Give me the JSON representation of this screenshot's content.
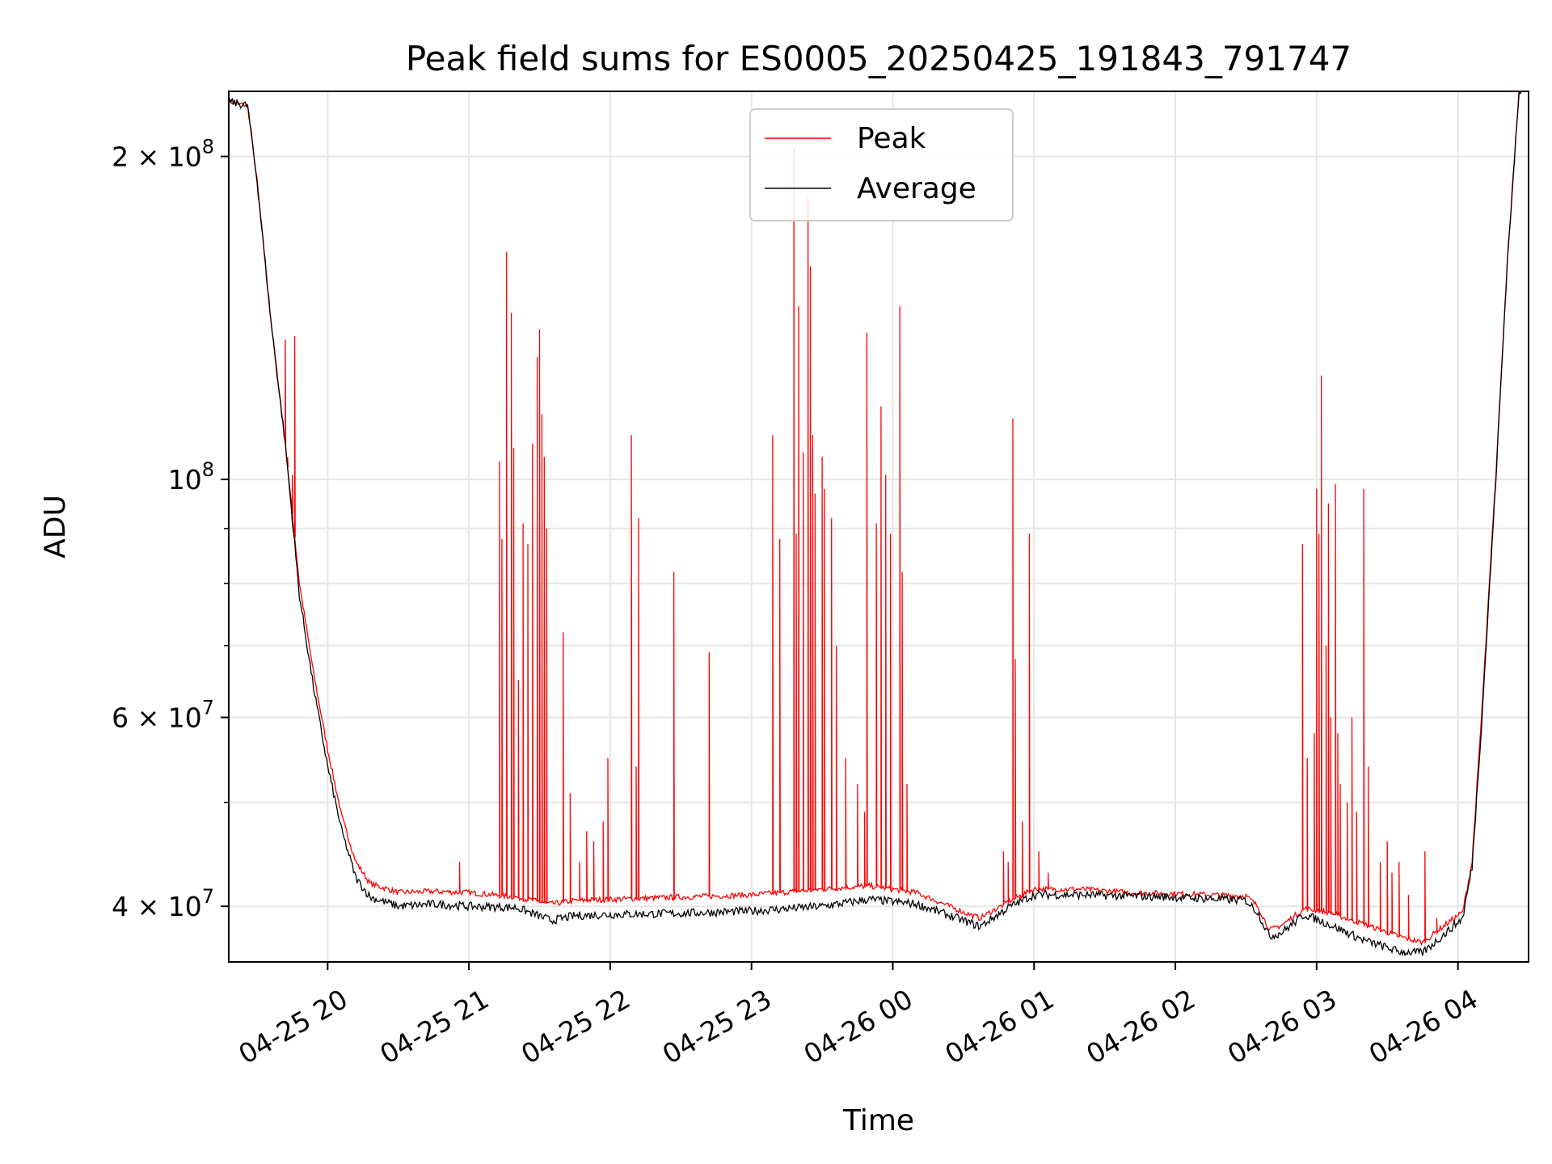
{
  "chart_data": {
    "type": "line",
    "title": "Peak field sums for ES0005_20250425_191843_791747",
    "xlabel": "Time",
    "ylabel": "ADU",
    "yscale": "log",
    "xlim": [
      "2025-04-25 19:18",
      "2025-04-26 04:30"
    ],
    "ylim": [
      35500000,
      230000000
    ],
    "grid": true,
    "legend_position": "top-center",
    "x_ticks": [
      {
        "t": "2025-04-25 20:00",
        "label": "04-25 20"
      },
      {
        "t": "2025-04-25 21:00",
        "label": "04-25 21"
      },
      {
        "t": "2025-04-25 22:00",
        "label": "04-25 22"
      },
      {
        "t": "2025-04-25 23:00",
        "label": "04-25 23"
      },
      {
        "t": "2025-04-26 00:00",
        "label": "04-26 00"
      },
      {
        "t": "2025-04-26 01:00",
        "label": "04-26 01"
      },
      {
        "t": "2025-04-26 02:00",
        "label": "04-26 02"
      },
      {
        "t": "2025-04-26 03:00",
        "label": "04-26 03"
      },
      {
        "t": "2025-04-26 04:00",
        "label": "04-26 04"
      }
    ],
    "y_ticks": [
      {
        "value": 40000000,
        "base": "4",
        "exp": "7"
      },
      {
        "value": 60000000,
        "base": "6",
        "exp": "7"
      },
      {
        "value": 100000000,
        "base": "",
        "exp": "8"
      },
      {
        "value": 200000000,
        "base": "2",
        "exp": "8"
      }
    ],
    "y_minor_ticks": [
      50000000,
      70000000,
      80000000,
      90000000
    ],
    "series": [
      {
        "name": "Peak",
        "color": "#ff0000",
        "baseline": [
          [
            "2025-04-25 19:18",
            225000000
          ],
          [
            "2025-04-25 19:22",
            224000000
          ],
          [
            "2025-04-25 19:26",
            223000000
          ],
          [
            "2025-04-25 19:30",
            190000000
          ],
          [
            "2025-04-25 19:36",
            140000000
          ],
          [
            "2025-04-25 19:42",
            108000000
          ],
          [
            "2025-04-25 19:48",
            80000000
          ],
          [
            "2025-04-25 19:54",
            66000000
          ],
          [
            "2025-04-25 20:00",
            56000000
          ],
          [
            "2025-04-25 20:06",
            48500000
          ],
          [
            "2025-04-25 20:12",
            44000000
          ],
          [
            "2025-04-25 20:18",
            42000000
          ],
          [
            "2025-04-25 20:30",
            41200000
          ],
          [
            "2025-04-25 20:45",
            41300000
          ],
          [
            "2025-04-25 21:00",
            41200000
          ],
          [
            "2025-04-25 21:20",
            40800000
          ],
          [
            "2025-04-25 21:35",
            40200000
          ],
          [
            "2025-04-25 21:45",
            40500000
          ],
          [
            "2025-04-25 22:00",
            40600000
          ],
          [
            "2025-04-25 22:30",
            40800000
          ],
          [
            "2025-04-25 23:00",
            41000000
          ],
          [
            "2025-04-25 23:30",
            41500000
          ],
          [
            "2025-04-25 23:50",
            41800000
          ],
          [
            "2025-04-26 00:10",
            41200000
          ],
          [
            "2025-04-26 00:30",
            39500000
          ],
          [
            "2025-04-26 00:37",
            39000000
          ],
          [
            "2025-04-26 00:50",
            40500000
          ],
          [
            "2025-04-26 01:00",
            41500000
          ],
          [
            "2025-04-26 01:20",
            41500000
          ],
          [
            "2025-04-26 01:40",
            41200000
          ],
          [
            "2025-04-26 02:00",
            41100000
          ],
          [
            "2025-04-26 02:30",
            40900000
          ],
          [
            "2025-04-26 02:35",
            40000000
          ],
          [
            "2025-04-26 02:40",
            38000000
          ],
          [
            "2025-04-26 02:45",
            38400000
          ],
          [
            "2025-04-26 02:55",
            39800000
          ],
          [
            "2025-04-26 03:05",
            39500000
          ],
          [
            "2025-04-26 03:20",
            38500000
          ],
          [
            "2025-04-26 03:35",
            37500000
          ],
          [
            "2025-04-26 03:45",
            37000000
          ],
          [
            "2025-04-26 03:55",
            38500000
          ],
          [
            "2025-04-26 04:02",
            39500000
          ],
          [
            "2025-04-26 04:06",
            44000000
          ],
          [
            "2025-04-26 04:10",
            60000000
          ],
          [
            "2025-04-26 04:16",
            100000000
          ],
          [
            "2025-04-26 04:21",
            160000000
          ],
          [
            "2025-04-26 04:26",
            230000000
          ],
          [
            "2025-04-26 04:30",
            235000000
          ]
        ],
        "spikes": [
          [
            "2025-04-25 19:42",
            135000000
          ],
          [
            "2025-04-25 19:43",
            105000000
          ],
          [
            "2025-04-25 19:45",
            101000000
          ],
          [
            "2025-04-25 19:46",
            136000000
          ],
          [
            "2025-04-25 20:56",
            44000000
          ],
          [
            "2025-04-25 21:13",
            104000000
          ],
          [
            "2025-04-25 21:14",
            88000000
          ],
          [
            "2025-04-25 21:16",
            163000000
          ],
          [
            "2025-04-25 21:18",
            143000000
          ],
          [
            "2025-04-25 21:19",
            107000000
          ],
          [
            "2025-04-25 21:21",
            65000000
          ],
          [
            "2025-04-25 21:23",
            91000000
          ],
          [
            "2025-04-25 21:25",
            87000000
          ],
          [
            "2025-04-25 21:27",
            108000000
          ],
          [
            "2025-04-25 21:29",
            130000000
          ],
          [
            "2025-04-25 21:30",
            138000000
          ],
          [
            "2025-04-25 21:31",
            115000000
          ],
          [
            "2025-04-25 21:32",
            105000000
          ],
          [
            "2025-04-25 21:33",
            90000000
          ],
          [
            "2025-04-25 21:40",
            72000000
          ],
          [
            "2025-04-25 21:43",
            51000000
          ],
          [
            "2025-04-25 21:47",
            44000000
          ],
          [
            "2025-04-25 21:50",
            47000000
          ],
          [
            "2025-04-25 21:53",
            46000000
          ],
          [
            "2025-04-25 21:57",
            48000000
          ],
          [
            "2025-04-25 21:59",
            55000000
          ],
          [
            "2025-04-25 22:09",
            110000000
          ],
          [
            "2025-04-25 22:11",
            54000000
          ],
          [
            "2025-04-25 22:12",
            92000000
          ],
          [
            "2025-04-25 22:27",
            82000000
          ],
          [
            "2025-04-25 22:42",
            69000000
          ],
          [
            "2025-04-25 23:09",
            110000000
          ],
          [
            "2025-04-25 23:12",
            88000000
          ],
          [
            "2025-04-25 23:18",
            204000000
          ],
          [
            "2025-04-25 23:19",
            89000000
          ],
          [
            "2025-04-25 23:20",
            145000000
          ],
          [
            "2025-04-25 23:22",
            106000000
          ],
          [
            "2025-04-25 23:24",
            183000000
          ],
          [
            "2025-04-25 23:25",
            158000000
          ],
          [
            "2025-04-25 23:26",
            110000000
          ],
          [
            "2025-04-25 23:27",
            97000000
          ],
          [
            "2025-04-25 23:30",
            105000000
          ],
          [
            "2025-04-25 23:31",
            98000000
          ],
          [
            "2025-04-25 23:34",
            92000000
          ],
          [
            "2025-04-25 23:36",
            70000000
          ],
          [
            "2025-04-25 23:40",
            55000000
          ],
          [
            "2025-04-25 23:45",
            52000000
          ],
          [
            "2025-04-25 23:48",
            49000000
          ],
          [
            "2025-04-25 23:49",
            137000000
          ],
          [
            "2025-04-25 23:53",
            91000000
          ],
          [
            "2025-04-25 23:55",
            117000000
          ],
          [
            "2025-04-25 23:57",
            101000000
          ],
          [
            "2025-04-25 23:59",
            89000000
          ],
          [
            "2025-04-26 00:03",
            145000000
          ],
          [
            "2025-04-26 00:04",
            82000000
          ],
          [
            "2025-04-26 00:06",
            52000000
          ],
          [
            "2025-04-26 00:47",
            45000000
          ],
          [
            "2025-04-26 00:49",
            44000000
          ],
          [
            "2025-04-26 00:51",
            114000000
          ],
          [
            "2025-04-26 00:52",
            68000000
          ],
          [
            "2025-04-26 00:55",
            48000000
          ],
          [
            "2025-04-26 00:58",
            89000000
          ],
          [
            "2025-04-26 01:02",
            45000000
          ],
          [
            "2025-04-26 01:06",
            43000000
          ],
          [
            "2025-04-26 02:54",
            87000000
          ],
          [
            "2025-04-26 02:56",
            55000000
          ],
          [
            "2025-04-26 02:59",
            58000000
          ],
          [
            "2025-04-26 03:00",
            98000000
          ],
          [
            "2025-04-26 03:01",
            89000000
          ],
          [
            "2025-04-26 03:02",
            125000000
          ],
          [
            "2025-04-26 03:04",
            70000000
          ],
          [
            "2025-04-26 03:05",
            95000000
          ],
          [
            "2025-04-26 03:06",
            60000000
          ],
          [
            "2025-04-26 03:08",
            99000000
          ],
          [
            "2025-04-26 03:09",
            58000000
          ],
          [
            "2025-04-26 03:10",
            52000000
          ],
          [
            "2025-04-26 03:13",
            50000000
          ],
          [
            "2025-04-26 03:15",
            60000000
          ],
          [
            "2025-04-26 03:17",
            49000000
          ],
          [
            "2025-04-26 03:20",
            98000000
          ],
          [
            "2025-04-26 03:22",
            54000000
          ],
          [
            "2025-04-26 03:27",
            44000000
          ],
          [
            "2025-04-26 03:30",
            46000000
          ],
          [
            "2025-04-26 03:32",
            43000000
          ],
          [
            "2025-04-26 03:35",
            44000000
          ],
          [
            "2025-04-26 03:39",
            41000000
          ],
          [
            "2025-04-26 03:46",
            45000000
          ],
          [
            "2025-04-26 03:51",
            39000000
          ]
        ]
      },
      {
        "name": "Average",
        "color": "#000000",
        "points": [
          [
            "2025-04-25 19:18",
            225000000
          ],
          [
            "2025-04-25 19:22",
            224000000
          ],
          [
            "2025-04-25 19:26",
            223000000
          ],
          [
            "2025-04-25 19:30",
            190000000
          ],
          [
            "2025-04-25 19:36",
            140000000
          ],
          [
            "2025-04-25 19:42",
            108000000
          ],
          [
            "2025-04-25 19:48",
            78000000
          ],
          [
            "2025-04-25 19:54",
            64000000
          ],
          [
            "2025-04-25 20:00",
            54000000
          ],
          [
            "2025-04-25 20:06",
            47000000
          ],
          [
            "2025-04-25 20:12",
            42500000
          ],
          [
            "2025-04-25 20:18",
            40800000
          ],
          [
            "2025-04-25 20:30",
            40000000
          ],
          [
            "2025-04-25 20:45",
            40200000
          ],
          [
            "2025-04-25 21:00",
            40000000
          ],
          [
            "2025-04-25 21:20",
            39900000
          ],
          [
            "2025-04-25 21:35",
            38800000
          ],
          [
            "2025-04-25 21:45",
            39200000
          ],
          [
            "2025-04-25 22:00",
            39300000
          ],
          [
            "2025-04-25 22:30",
            39400000
          ],
          [
            "2025-04-25 23:00",
            39600000
          ],
          [
            "2025-04-25 23:30",
            40000000
          ],
          [
            "2025-04-25 23:50",
            40600000
          ],
          [
            "2025-04-26 00:10",
            40200000
          ],
          [
            "2025-04-26 00:30",
            38800000
          ],
          [
            "2025-04-26 00:37",
            38300000
          ],
          [
            "2025-04-26 00:50",
            40000000
          ],
          [
            "2025-04-26 01:00",
            41000000
          ],
          [
            "2025-04-26 01:20",
            41000000
          ],
          [
            "2025-04-26 01:40",
            40900000
          ],
          [
            "2025-04-26 02:00",
            40800000
          ],
          [
            "2025-04-26 02:30",
            40500000
          ],
          [
            "2025-04-26 02:35",
            39500000
          ],
          [
            "2025-04-26 02:40",
            37500000
          ],
          [
            "2025-04-26 02:45",
            37800000
          ],
          [
            "2025-04-26 02:55",
            39300000
          ],
          [
            "2025-04-26 03:05",
            38500000
          ],
          [
            "2025-04-26 03:20",
            37200000
          ],
          [
            "2025-04-26 03:35",
            36300000
          ],
          [
            "2025-04-26 03:45",
            36200000
          ],
          [
            "2025-04-26 03:55",
            37800000
          ],
          [
            "2025-04-26 04:02",
            39000000
          ],
          [
            "2025-04-26 04:06",
            43500000
          ],
          [
            "2025-04-26 04:10",
            59000000
          ],
          [
            "2025-04-26 04:16",
            99000000
          ],
          [
            "2025-04-26 04:21",
            160000000
          ],
          [
            "2025-04-26 04:26",
            230000000
          ],
          [
            "2025-04-26 04:30",
            235000000
          ]
        ]
      }
    ]
  }
}
